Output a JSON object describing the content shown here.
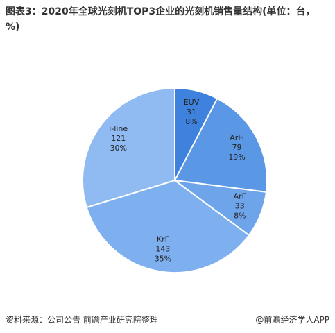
{
  "chart_data": {
    "type": "pie",
    "title": "图表3：2020年全球光刻机TOP3企业的光刻机销售量结构(单位：台，%)",
    "categories": [
      "EUV",
      "ArFi",
      "ArF",
      "KrF",
      "i-line"
    ],
    "values": [
      31,
      79,
      33,
      143,
      121
    ],
    "shares": [
      8,
      19,
      8,
      35,
      30
    ],
    "share_labels": [
      "8%",
      "19%",
      "8%",
      "35%",
      "30%"
    ],
    "colors": [
      "#3f82dd",
      "#5a97e5",
      "#6da4ea",
      "#7eafee",
      "#8fbbf2"
    ],
    "source": "资料来源：公司公告 前瞻产业研究院整理",
    "footer": "@前瞻经济学人APP"
  }
}
